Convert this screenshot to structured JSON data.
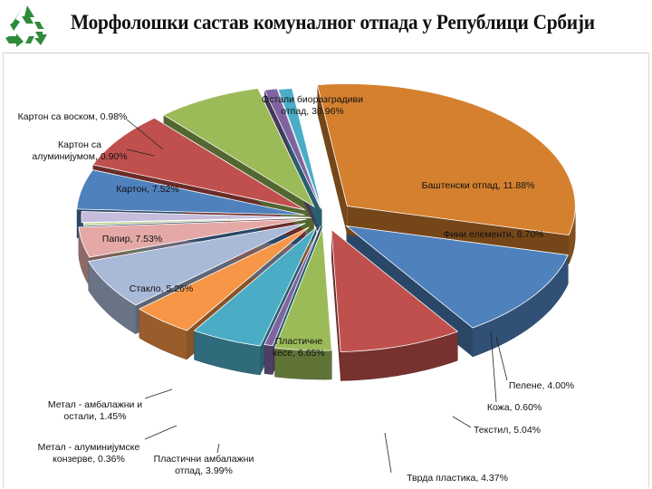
{
  "title": "Морфолошки састав комуналног отпада у Републици Србији",
  "logo_icon": "recycle-icon",
  "colors": {
    "logo": "#2e8b3a",
    "background": "#ffffff"
  },
  "chart_data": {
    "type": "pie",
    "title": "Морфолошки састав комуналног отпада у Републици Србији",
    "style": "3d-exploded",
    "slices": [
      {
        "label": "Остали биоразградиви отпад, 30.96%",
        "name": "Остали биоразградиви отпад",
        "value": 30.96,
        "color": "#d5802e"
      },
      {
        "label": "Баштенски отпад, 11.88%",
        "name": "Баштенски отпад",
        "value": 11.88,
        "color": "#4f81bd"
      },
      {
        "label": "Фини елементи, 8.70%",
        "name": "Фини елементи",
        "value": 8.7,
        "color": "#c0504d"
      },
      {
        "label": "Пелене, 4.00%",
        "name": "Пелене",
        "value": 4.0,
        "color": "#9bbb59"
      },
      {
        "label": "Кожа, 0.60%",
        "name": "Кожа",
        "value": 0.6,
        "color": "#8064a2"
      },
      {
        "label": "Текстил, 5.04%",
        "name": "Текстил",
        "value": 5.04,
        "color": "#4bacc6"
      },
      {
        "label": "Тврда пластика, 4.37%",
        "name": "Тврда пластика",
        "value": 4.37,
        "color": "#f79646"
      },
      {
        "label": "Пластичне кесе, 6.65%",
        "name": "Пластичне кесе",
        "value": 6.65,
        "color": "#a9b9d8"
      },
      {
        "label": "Пластични амбалажни отпад, 3.99%",
        "name": "Пластични амбалажни отпад",
        "value": 3.99,
        "color": "#e4a9a7"
      },
      {
        "label": "Метал - алуминијумске конзерве, 0.36%",
        "name": "Метал - алуминијумске конзерве",
        "value": 0.36,
        "color": "#c4d79b"
      },
      {
        "label": "Метал - амбалажни и остали, 1.45%",
        "name": "Метал - амбалажни и остали",
        "value": 1.45,
        "color": "#c5bddb"
      },
      {
        "label": "Стакло, 5.26%",
        "name": "Стакло",
        "value": 5.26,
        "color": "#4f81bd"
      },
      {
        "label": "Папир, 7.53%",
        "name": "Папир",
        "value": 7.53,
        "color": "#c0504d"
      },
      {
        "label": "Картон, 7.52%",
        "name": "Картон",
        "value": 7.52,
        "color": "#9bbb59"
      },
      {
        "label": "Картон са алуминијумом, 0.90%",
        "name": "Картон са алуминијумом",
        "value": 0.9,
        "color": "#8064a2"
      },
      {
        "label": "Картон са воском, 0.98%",
        "name": "Картон са воском",
        "value": 0.98,
        "color": "#4bacc6"
      }
    ],
    "legend": "none"
  }
}
